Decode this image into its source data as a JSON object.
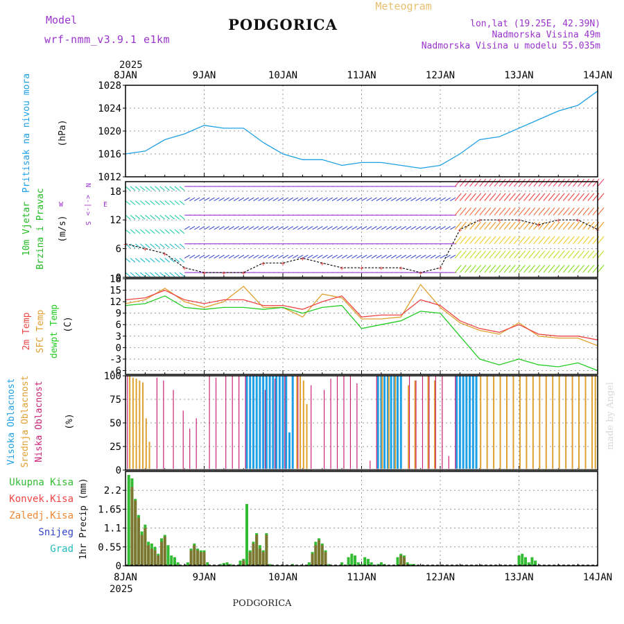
{
  "header": {
    "title": "PODGORICA",
    "subtitle": "Meteogram",
    "model_label": "Model",
    "model_name": "wrf-nmm_v3.9.1 e1km",
    "coords": "lon,lat (19.25E, 42.39N)",
    "elevation": "Nadmorska Visina 49m",
    "model_elevation": "Nadmorska Visina u modelu 55.035m",
    "year_top": "2025",
    "year_bottom": "2025",
    "footer": "PODGORICA",
    "credit": "made by Angel"
  },
  "colors": {
    "pressure": "#1ea0e6",
    "wind_green": "#22bb22",
    "wind_purple": "#9933cc",
    "temp2m": "#ee4444",
    "sfc_temp": "#e0a030",
    "dewpt": "#22cc22",
    "high_cloud": "#1ea0e6",
    "mid_cloud": "#e0a030",
    "low_cloud": "#cc2277",
    "total_rain": "#33bb33",
    "conv_rain": "#ee4444",
    "frz_rain": "#ee8833",
    "snow": "#3344cc",
    "hail": "#22bbbb"
  },
  "chart_data": [
    {
      "type": "line",
      "title": "",
      "ylabel": "Pritisak na nivou mora",
      "unit": "(hPa)",
      "x_unit": "hours",
      "x_ticks": [
        "8JAN",
        "9JAN",
        "10JAN",
        "11JAN",
        "12JAN",
        "13JAN",
        "14JAN"
      ],
      "ylim": [
        1012,
        1028
      ],
      "yticks": [
        "1012",
        "1016",
        "1020",
        "1024",
        "1028"
      ],
      "series": [
        {
          "x": [
            0,
            6,
            12,
            18,
            24,
            30,
            36,
            42,
            48,
            54,
            60,
            66,
            72,
            78,
            84,
            90,
            96,
            102,
            108,
            114,
            120,
            126,
            132,
            138,
            144
          ],
          "values": [
            1016.0,
            1016.5,
            1018.5,
            1019.5,
            1021.0,
            1020.5,
            1020.5,
            1018.0,
            1016.0,
            1015.0,
            1015.0,
            1014.0,
            1014.5,
            1014.5,
            1014.0,
            1013.5,
            1014.0,
            1016.0,
            1018.5,
            1019.0,
            1020.5,
            1022.0,
            1023.5,
            1024.5,
            1027.0
          ]
        }
      ]
    },
    {
      "type": "line",
      "title": "",
      "ylabel": "10m Vjetar Brzina i Pravac",
      "unit": "(m/s)",
      "compass": [
        "N",
        "E",
        "S",
        "W"
      ],
      "compass_mid": "<-|->",
      "ylim": [
        0,
        20
      ],
      "yticks": [
        "0",
        "6",
        "12",
        "18"
      ],
      "series": [
        {
          "name": "wind speed",
          "x": [
            0,
            6,
            12,
            18,
            24,
            30,
            36,
            42,
            48,
            54,
            60,
            66,
            72,
            78,
            84,
            90,
            96,
            102,
            108,
            114,
            120,
            126,
            132,
            138,
            144
          ],
          "values": [
            7,
            6,
            5,
            2,
            1,
            1,
            1,
            3,
            3,
            4,
            3,
            2,
            2,
            2,
            2,
            1,
            2,
            10,
            12,
            12,
            12,
            11,
            12,
            12,
            10
          ]
        }
      ]
    },
    {
      "type": "line",
      "title": "",
      "ylabel": [
        "2m Temp",
        "SFC Temp",
        "dewpt Temp"
      ],
      "unit": "(C)",
      "ylim": [
        -7,
        18
      ],
      "yticks": [
        "-6",
        "-3",
        "0",
        "3",
        "6",
        "9",
        "12",
        "15",
        "18"
      ],
      "series": [
        {
          "name": "2m Temp",
          "x": [
            0,
            6,
            12,
            18,
            24,
            30,
            36,
            42,
            48,
            54,
            60,
            66,
            72,
            78,
            84,
            90,
            96,
            102,
            108,
            114,
            120,
            126,
            132,
            138,
            144
          ],
          "values": [
            12.5,
            13.0,
            15.0,
            12.5,
            11.5,
            12.5,
            12.5,
            11.0,
            11.0,
            10.0,
            12.0,
            13.5,
            8.0,
            8.5,
            8.5,
            12.5,
            11.0,
            7.0,
            5.0,
            4.0,
            6.0,
            3.5,
            3.0,
            3.0,
            2.0
          ]
        },
        {
          "name": "SFC Temp",
          "x": [
            0,
            6,
            12,
            18,
            24,
            30,
            36,
            42,
            48,
            54,
            60,
            66,
            72,
            78,
            84,
            90,
            96,
            102,
            108,
            114,
            120,
            126,
            132,
            138,
            144
          ],
          "values": [
            11.5,
            12.5,
            15.5,
            12.0,
            10.5,
            12.0,
            16.0,
            10.5,
            10.5,
            8.0,
            14.0,
            13.0,
            7.5,
            7.5,
            8.0,
            16.5,
            10.5,
            6.5,
            4.5,
            3.5,
            6.5,
            3.0,
            2.5,
            2.5,
            0.5
          ]
        },
        {
          "name": "dewpt Temp",
          "x": [
            0,
            6,
            12,
            18,
            24,
            30,
            36,
            42,
            48,
            54,
            60,
            66,
            72,
            78,
            84,
            90,
            96,
            102,
            108,
            114,
            120,
            126,
            132,
            138,
            144
          ],
          "values": [
            11.0,
            11.5,
            13.5,
            10.5,
            10.0,
            10.5,
            10.5,
            10.0,
            10.5,
            9.0,
            10.5,
            11.0,
            5.0,
            6.0,
            7.0,
            9.5,
            9.0,
            3.0,
            -3.0,
            -4.5,
            -3.0,
            -4.5,
            -5.0,
            -4.0,
            -6.0
          ]
        }
      ]
    },
    {
      "type": "bar",
      "title": "",
      "ylabel": [
        "Visoka Oblacnost",
        "Srednja Oblacnost",
        "Niska Oblacnost"
      ],
      "unit": "(%)",
      "ylim": [
        0,
        100
      ],
      "yticks": [
        "0",
        "25",
        "50",
        "75",
        "100"
      ],
      "series": [
        {
          "name": "Visoka Oblacnost",
          "x": [
            37,
            38,
            39,
            40,
            41,
            42,
            43,
            44,
            45,
            46,
            47,
            48,
            49,
            50,
            51,
            77,
            78,
            79,
            80,
            81,
            82,
            83,
            84,
            101,
            102,
            103,
            104,
            105,
            106,
            107
          ],
          "values": [
            100,
            100,
            100,
            100,
            100,
            100,
            100,
            100,
            100,
            100,
            100,
            100,
            100,
            40,
            100,
            100,
            100,
            100,
            100,
            100,
            100,
            100,
            100,
            100,
            100,
            100,
            100,
            100,
            100,
            100
          ]
        },
        {
          "name": "Srednja Oblacnost",
          "x": [
            1,
            2,
            3,
            4,
            5,
            6,
            7,
            52,
            53,
            54,
            55,
            78,
            80,
            82,
            86,
            88,
            92,
            94,
            108,
            110,
            112,
            114,
            116,
            118,
            120,
            122,
            124,
            126,
            128,
            130,
            132,
            134,
            136,
            138,
            140,
            142,
            143
          ],
          "values": [
            100,
            98,
            97,
            95,
            93,
            55,
            30,
            100,
            100,
            95,
            70,
            100,
            100,
            100,
            90,
            95,
            100,
            95,
            100,
            100,
            100,
            100,
            100,
            100,
            100,
            100,
            100,
            100,
            100,
            100,
            100,
            100,
            100,
            100,
            100,
            100,
            100
          ]
        },
        {
          "name": "Niska Oblacnost",
          "x": [
            0,
            9,
            11,
            14,
            17,
            19,
            21,
            25,
            27,
            30,
            32,
            34,
            36,
            42,
            45,
            48,
            52,
            56,
            60,
            62,
            64,
            66,
            68,
            70,
            74,
            76,
            86,
            88,
            90,
            92,
            94,
            96,
            98,
            100
          ],
          "values": [
            100,
            98,
            95,
            85,
            63,
            44,
            55,
            100,
            98,
            100,
            100,
            100,
            100,
            85,
            97,
            100,
            100,
            90,
            85,
            97,
            100,
            100,
            100,
            92,
            10,
            100,
            100,
            95,
            100,
            100,
            100,
            100,
            15,
            100
          ]
        }
      ]
    },
    {
      "type": "bar",
      "title": "",
      "ylabel": "1hr Precip",
      "unit": "(mm)",
      "legend": [
        "Ukupna Kisa",
        "Konvek.Kisa",
        "Zaledj.Kisa",
        "Snijeg",
        "Grad"
      ],
      "ylim": [
        0,
        2.75
      ],
      "yticks": [
        "0",
        "0.55",
        "1.1",
        "1.65",
        "2.2"
      ],
      "x_ticks": [
        "8JAN",
        "9JAN",
        "10JAN",
        "11JAN",
        "12JAN",
        "13JAN",
        "14JAN"
      ],
      "series": [
        {
          "name": "Ukupna Kisa",
          "x": [
            1,
            2,
            3,
            4,
            5,
            6,
            7,
            8,
            9,
            10,
            11,
            12,
            13,
            14,
            15,
            16,
            19,
            20,
            21,
            22,
            23,
            24,
            25,
            29,
            30,
            31,
            32,
            35,
            36,
            37,
            38,
            39,
            40,
            41,
            42,
            43,
            44,
            51,
            56,
            57,
            58,
            59,
            60,
            61,
            62,
            66,
            68,
            69,
            70,
            71,
            72,
            73,
            74,
            75,
            77,
            78,
            79,
            83,
            84,
            85,
            86,
            87,
            88,
            120,
            121,
            122,
            123,
            124,
            125
          ],
          "values": [
            2.65,
            2.55,
            1.95,
            1.48,
            1.0,
            1.2,
            0.7,
            0.65,
            0.55,
            0.35,
            0.8,
            0.9,
            0.6,
            0.3,
            0.25,
            0.1,
            0.1,
            0.5,
            0.65,
            0.5,
            0.45,
            0.45,
            0.1,
            0.05,
            0.08,
            0.1,
            0.05,
            0.15,
            0.2,
            1.8,
            0.45,
            0.7,
            0.95,
            0.6,
            0.45,
            0.95,
            0.05,
            0.05,
            0.1,
            0.4,
            0.7,
            0.8,
            0.65,
            0.45,
            0.05,
            0.1,
            0.25,
            0.35,
            0.3,
            0.1,
            0.05,
            0.25,
            0.2,
            0.1,
            0.05,
            0.1,
            0.05,
            0.25,
            0.35,
            0.3,
            0.1,
            0.05,
            0.05,
            0.3,
            0.35,
            0.25,
            0.1,
            0.25,
            0.15
          ]
        },
        {
          "name": "Konvek.Kisa",
          "x": [
            2,
            3,
            4,
            5,
            6,
            7,
            8,
            9,
            10,
            11,
            12,
            20,
            21,
            22,
            23,
            24,
            36,
            38,
            39,
            40,
            41,
            42,
            43,
            57,
            58,
            59,
            60,
            61,
            84,
            85,
            86
          ],
          "values": [
            2.3,
            1.9,
            1.4,
            0.9,
            1.1,
            0.6,
            0.5,
            0.45,
            0.3,
            0.7,
            0.85,
            0.45,
            0.6,
            0.45,
            0.4,
            0.4,
            0.15,
            0.4,
            0.65,
            0.9,
            0.5,
            0.4,
            0.9,
            0.35,
            0.6,
            0.75,
            0.6,
            0.4,
            0.3,
            0.25,
            0.05
          ]
        }
      ]
    }
  ]
}
